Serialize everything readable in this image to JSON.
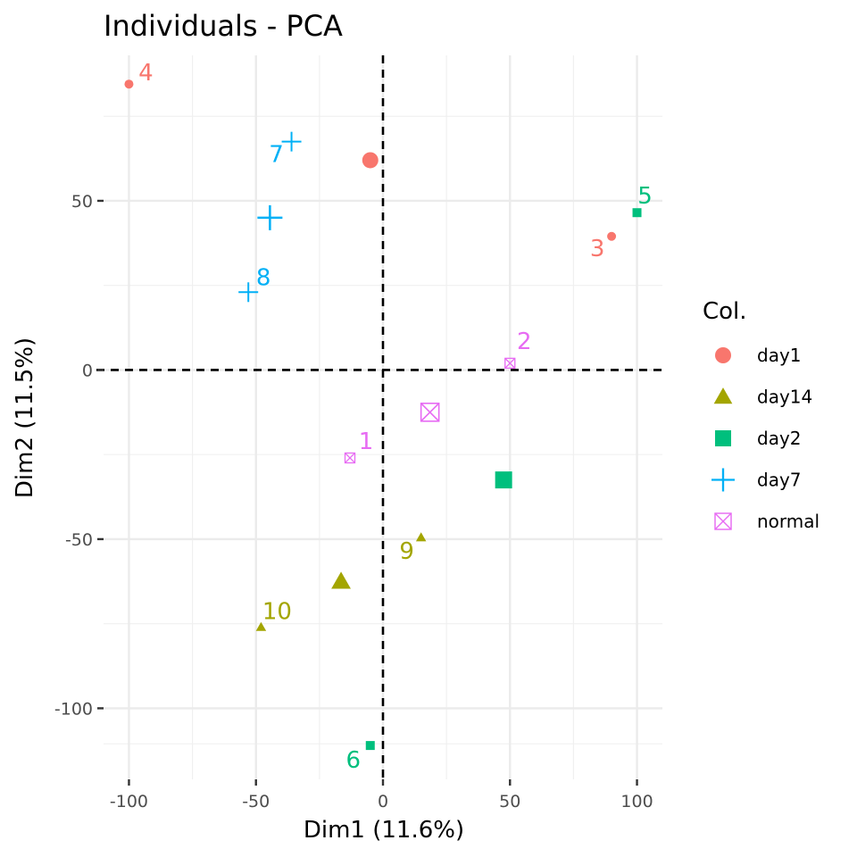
{
  "chart_data": {
    "type": "scatter",
    "title": "Individuals - PCA",
    "xlabel": "Dim1 (11.6%)",
    "ylabel": "Dim2 (11.5%)",
    "xlim": [
      -110,
      110
    ],
    "ylim": [
      -121,
      93
    ],
    "x_ticks": [
      -100,
      -50,
      0,
      50,
      100
    ],
    "x_tick_labels": [
      "-100",
      "-50",
      "0",
      "50",
      "100"
    ],
    "y_ticks": [
      -100,
      -50,
      0,
      50
    ],
    "y_tick_labels": [
      "-100",
      "-50",
      "0",
      "50"
    ],
    "grid": true,
    "reference_lines": [
      {
        "axis": "x",
        "value": 0,
        "style": "dashed"
      },
      {
        "axis": "y",
        "value": 0,
        "style": "dashed"
      }
    ],
    "legend": {
      "title": "Col.",
      "placement": "right",
      "entries": [
        {
          "label": "day1",
          "shape": "circle",
          "color": "#F8766D"
        },
        {
          "label": "day14",
          "shape": "triangle",
          "color": "#A3A500"
        },
        {
          "label": "day2",
          "shape": "square",
          "color": "#00BF7D"
        },
        {
          "label": "day7",
          "shape": "plus",
          "color": "#00B0F6"
        },
        {
          "label": "normal",
          "shape": "boxx",
          "color": "#E76BF3"
        }
      ]
    },
    "points": [
      {
        "label": "1",
        "group": "normal",
        "x": -13,
        "y": -26
      },
      {
        "label": "2",
        "group": "normal",
        "x": 50,
        "y": 2
      },
      {
        "label": "3",
        "group": "day1",
        "x": 90,
        "y": 39.5
      },
      {
        "label": "4",
        "group": "day1",
        "x": -100,
        "y": 84.5
      },
      {
        "label": "5",
        "group": "day2",
        "x": 100,
        "y": 46.5
      },
      {
        "label": "6",
        "group": "day2",
        "x": -5,
        "y": -111
      },
      {
        "label": "7",
        "group": "day7",
        "x": -36,
        "y": 67.5
      },
      {
        "label": "8",
        "group": "day7",
        "x": -53,
        "y": 23
      },
      {
        "label": "9",
        "group": "day14",
        "x": 15,
        "y": -49.5
      },
      {
        "label": "10",
        "group": "day14",
        "x": -48,
        "y": -76
      }
    ],
    "centroids": [
      {
        "group": "day1",
        "x": -5,
        "y": 62
      },
      {
        "group": "day14",
        "x": -16.5,
        "y": -62.5
      },
      {
        "group": "day2",
        "x": 47.5,
        "y": -32.5
      },
      {
        "group": "day7",
        "x": -44.5,
        "y": 45
      },
      {
        "group": "normal",
        "x": 18.5,
        "y": -12.5
      }
    ]
  }
}
